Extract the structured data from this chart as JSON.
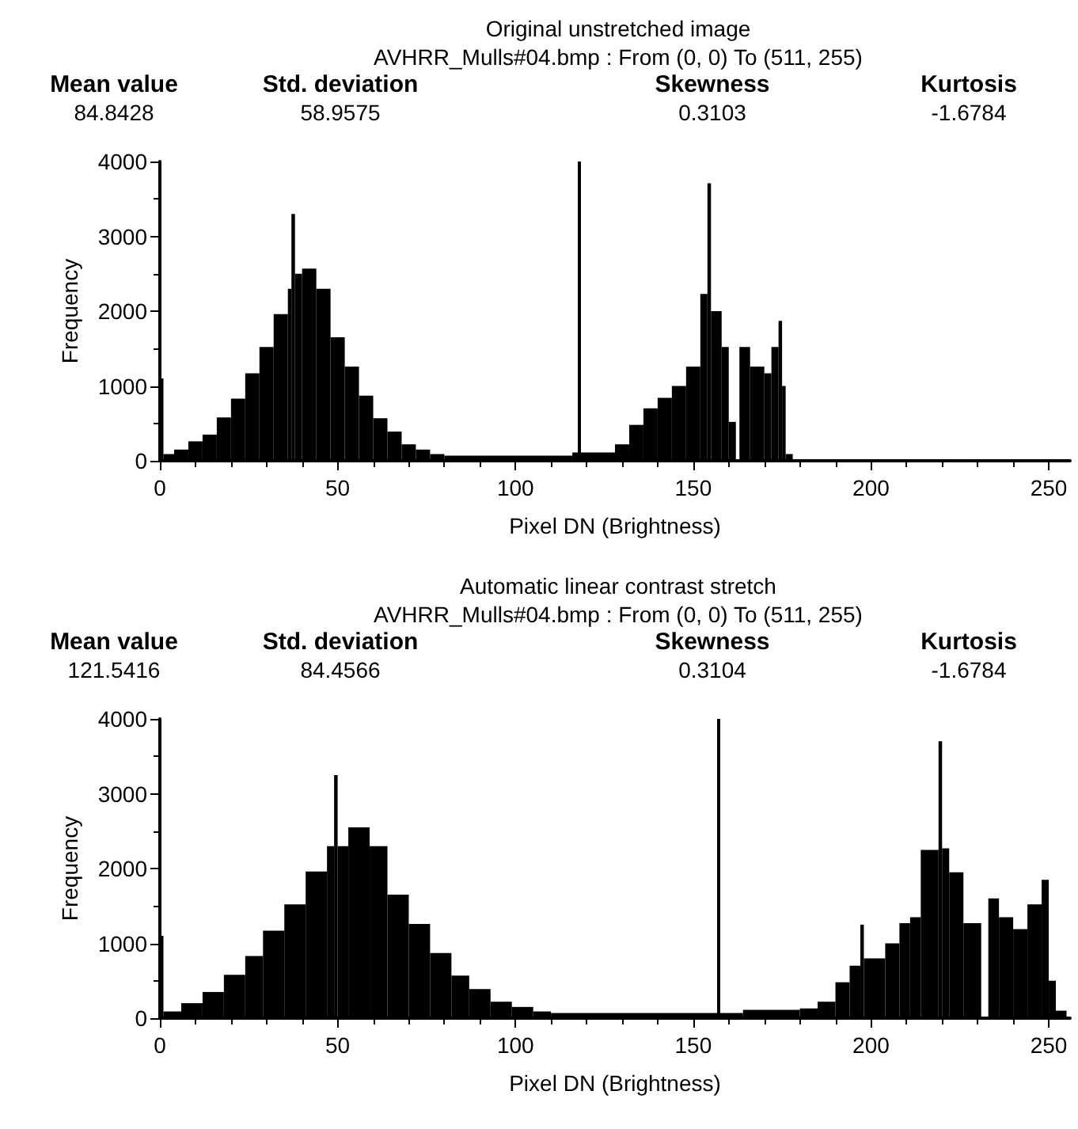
{
  "chart_data": [
    {
      "type": "histogram",
      "title": "Original unstretched image",
      "subtitle": "AVHRR_Mulls#04.bmp : From (0, 0) To (511, 255)",
      "annotations": [
        "Mean value",
        "84.8428",
        "Std. deviation",
        "58.9575",
        "Skewness",
        "0.3103",
        "Kurtosis",
        "-1.6784"
      ],
      "xlabel": "Pixel DN (Brightness)",
      "ylabel": "Frequency",
      "color": "#000000",
      "bins": [
        0,
        1,
        4,
        8,
        12,
        16,
        20,
        24,
        28,
        32,
        36,
        37,
        38,
        40,
        44,
        48,
        52,
        56,
        60,
        64,
        68,
        72,
        76,
        80,
        116,
        128,
        132,
        136,
        140,
        144,
        148,
        152,
        154,
        155,
        158,
        160,
        162,
        163,
        166,
        170,
        172,
        174,
        175,
        176,
        178
      ],
      "values": [
        1100,
        90,
        150,
        260,
        350,
        580,
        830,
        1170,
        1520,
        1960,
        2300,
        3300,
        2500,
        2570,
        2300,
        1650,
        1260,
        870,
        570,
        390,
        220,
        150,
        90,
        70,
        110,
        220,
        480,
        700,
        840,
        1000,
        1260,
        2230,
        3710,
        2000,
        1520,
        520,
        0,
        1520,
        1260,
        1170,
        1520,
        1870,
        1000,
        90
      ],
      "xlim": [
        0,
        256
      ],
      "xticks": [
        0,
        50,
        100,
        150,
        200,
        250
      ],
      "ylim": [
        0,
        4000
      ],
      "yticks": [
        0,
        1000,
        2000,
        3000,
        4000
      ],
      "ref_lines": [
        {
          "axis": "x",
          "value": 118,
          "color": "#000000"
        }
      ],
      "grid": false
    },
    {
      "type": "histogram",
      "title": "Automatic linear contrast stretch",
      "subtitle": "AVHRR_Mulls#04.bmp : From (0, 0) To (511, 255)",
      "annotations": [
        "Mean value",
        "121.5416",
        "Std. deviation",
        "84.4566",
        "Skewness",
        "0.3104",
        "Kurtosis",
        "-1.6784"
      ],
      "xlabel": "Pixel DN (Brightness)",
      "ylabel": "Frequency",
      "color": "#000000",
      "bins": [
        0,
        1,
        6,
        12,
        18,
        24,
        29,
        35,
        41,
        47,
        49,
        50,
        53,
        59,
        64,
        70,
        76,
        82,
        87,
        93,
        99,
        105,
        110,
        164,
        180,
        185,
        190,
        194,
        197,
        198,
        204,
        208,
        211,
        214,
        219,
        220,
        222,
        226,
        231,
        233,
        236,
        240,
        244,
        248,
        250,
        252,
        255
      ],
      "values": [
        1100,
        90,
        200,
        350,
        580,
        830,
        1170,
        1520,
        1960,
        2300,
        3250,
        2300,
        2550,
        2300,
        1650,
        1260,
        870,
        570,
        390,
        220,
        150,
        90,
        70,
        110,
        130,
        220,
        480,
        700,
        1250,
        800,
        1000,
        1270,
        1350,
        2250,
        3700,
        2270,
        1950,
        1270,
        0,
        1600,
        1350,
        1190,
        1520,
        1850,
        500,
        100
      ],
      "xlim": [
        0,
        256
      ],
      "xticks": [
        0,
        50,
        100,
        150,
        200,
        250
      ],
      "ylim": [
        0,
        4000
      ],
      "yticks": [
        0,
        1000,
        2000,
        3000,
        4000
      ],
      "ref_lines": [
        {
          "axis": "x",
          "value": 157,
          "color": "#000000"
        }
      ],
      "grid": false
    }
  ]
}
